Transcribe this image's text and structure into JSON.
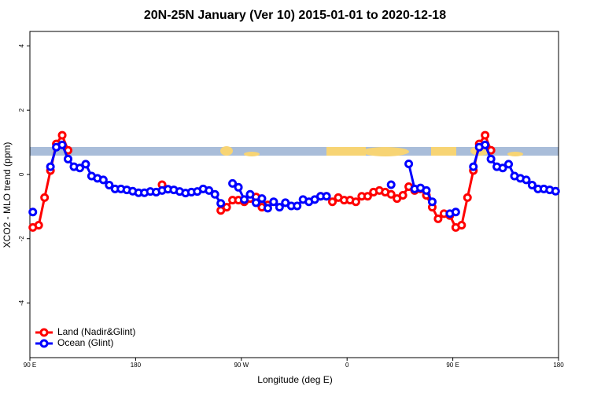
{
  "chart_data": {
    "type": "line",
    "title": "20N-25N January (Ver 10)   2015-01-01 to 2020-12-18",
    "x_label": "Longitude (deg E)",
    "y_label": "XCO2 - MLO trend (ppm)",
    "x": [
      92.5,
      97.5,
      102.5,
      107.5,
      112.5,
      117.5,
      122.5,
      127.5,
      132.5,
      137.5,
      142.5,
      147.5,
      152.5,
      157.5,
      162.5,
      167.5,
      172.5,
      177.5,
      182.5,
      187.5,
      192.5,
      197.5,
      202.5,
      207.5,
      212.5,
      217.5,
      222.5,
      227.5,
      232.5,
      237.5,
      242.5,
      247.5,
      252.5,
      257.5,
      262.5,
      267.5,
      272.5,
      277.5,
      282.5,
      287.5,
      292.5,
      297.5,
      302.5,
      307.5,
      312.5,
      317.5,
      322.5,
      327.5,
      332.5,
      337.5,
      342.5,
      347.5,
      352.5,
      357.5,
      362.5,
      367.5,
      372.5,
      377.5,
      382.5,
      387.5,
      392.5,
      397.5,
      402.5,
      407.5,
      412.5,
      417.5,
      422.5,
      427.5,
      432.5,
      437.5,
      442.5,
      447.5,
      452.5,
      457.5,
      462.5,
      467.5,
      472.5,
      477.5,
      482.5,
      487.5,
      492.5,
      497.5,
      502.5,
      507.5,
      512.5,
      517.5,
      522.5,
      527.5,
      532.5,
      537.5
    ],
    "series": [
      {
        "name": "Land (Nadir&Glint)",
        "color": "#ff0000",
        "values": [
          -1.65,
          -1.58,
          -0.72,
          0.12,
          0.95,
          1.22,
          0.75,
          null,
          null,
          null,
          null,
          null,
          null,
          null,
          null,
          null,
          null,
          null,
          null,
          null,
          null,
          null,
          -0.32,
          null,
          null,
          null,
          null,
          null,
          null,
          null,
          null,
          null,
          -1.12,
          -1.02,
          -0.8,
          -0.8,
          -0.85,
          -0.75,
          -0.7,
          -1.02,
          -0.95,
          null,
          null,
          null,
          null,
          null,
          null,
          null,
          null,
          -0.68,
          -0.68,
          -0.85,
          -0.72,
          -0.8,
          -0.8,
          -0.85,
          -0.68,
          -0.68,
          -0.55,
          -0.5,
          -0.55,
          -0.62,
          -0.75,
          -0.65,
          -0.38,
          -0.5,
          -0.45,
          -0.65,
          -1.02,
          -1.38,
          -1.22,
          -1.28,
          -1.65,
          -1.58,
          -0.72,
          0.12,
          0.95,
          1.22,
          0.75,
          null,
          null,
          null,
          null,
          null,
          null,
          null,
          null,
          null,
          null,
          null
        ]
      },
      {
        "name": "Ocean (Glint)",
        "color": "#0000ff",
        "values": [
          -1.17,
          null,
          null,
          0.24,
          0.85,
          0.92,
          0.48,
          0.24,
          0.2,
          0.32,
          -0.05,
          -0.12,
          -0.17,
          -0.33,
          -0.45,
          -0.45,
          -0.48,
          -0.52,
          -0.57,
          -0.57,
          -0.53,
          -0.55,
          -0.5,
          -0.46,
          -0.48,
          -0.53,
          -0.58,
          -0.55,
          -0.53,
          -0.45,
          -0.5,
          -0.62,
          -0.9,
          null,
          -0.28,
          -0.4,
          -0.78,
          -0.62,
          -0.88,
          -0.75,
          -1.05,
          -0.85,
          -1.02,
          -0.88,
          -0.98,
          -0.98,
          -0.78,
          -0.85,
          -0.78,
          -0.68,
          -0.68,
          null,
          null,
          null,
          null,
          null,
          null,
          null,
          null,
          null,
          null,
          -0.32,
          null,
          null,
          0.33,
          -0.45,
          -0.42,
          -0.5,
          -0.85,
          null,
          null,
          -1.22,
          -1.17,
          null,
          null,
          0.24,
          0.85,
          0.92,
          0.48,
          0.24,
          0.2,
          0.32,
          -0.05,
          -0.12,
          -0.17,
          -0.33,
          -0.45,
          -0.45,
          -0.48,
          -0.52
        ]
      }
    ],
    "xlim": [
      90,
      540
    ],
    "ylim": [
      -5.7,
      4.45
    ],
    "xticks": [
      {
        "value": 90,
        "label": "90 E"
      },
      180,
      {
        "value": 270,
        "label": "90 W"
      },
      {
        "value": 360,
        "label": "0"
      },
      {
        "value": 450,
        "label": "90 E"
      },
      {
        "value": 540,
        "label": "180"
      }
    ],
    "yticks": [
      -4,
      -2,
      0,
      2,
      4
    ],
    "legend": "bottom-left"
  }
}
